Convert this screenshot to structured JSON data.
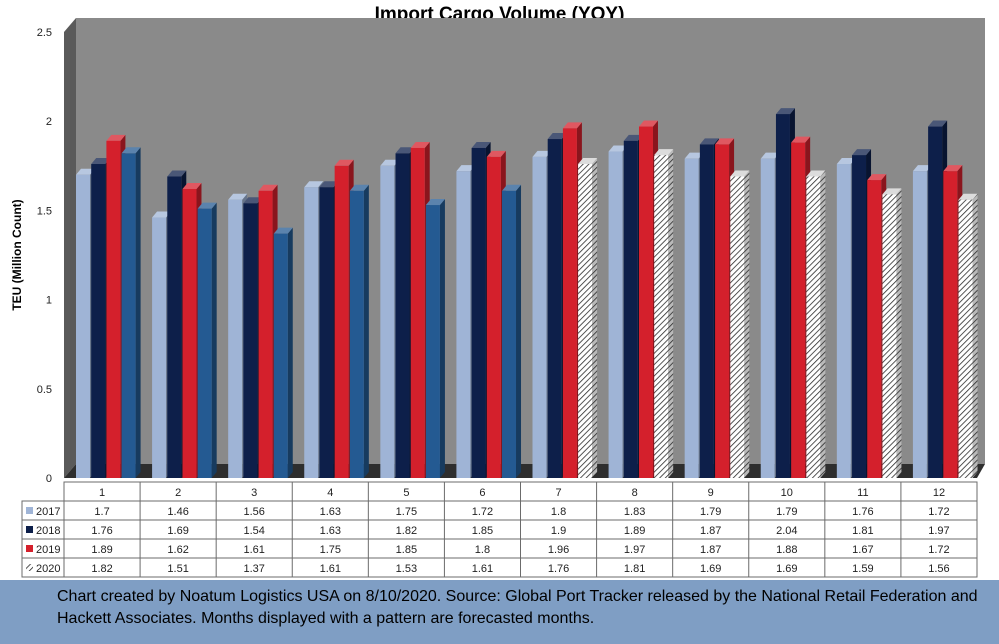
{
  "chart_data": {
    "type": "bar",
    "title": "Import Cargo Volume (YOY)",
    "xlabel": "",
    "ylabel": "TEU (Million Count)",
    "ylim": [
      0,
      2.5
    ],
    "yticks": [
      "0",
      "0.5",
      "1",
      "1.5",
      "2",
      "2.5"
    ],
    "categories": [
      "1",
      "2",
      "3",
      "4",
      "5",
      "6",
      "7",
      "8",
      "9",
      "10",
      "11",
      "12"
    ],
    "series": [
      {
        "name": "2017",
        "values": [
          "1.7",
          "1.46",
          "1.56",
          "1.63",
          "1.75",
          "1.72",
          "1.8",
          "1.83",
          "1.79",
          "1.79",
          "1.76",
          "1.72"
        ],
        "color": "#9fb4d6"
      },
      {
        "name": "2018",
        "values": [
          "1.76",
          "1.69",
          "1.54",
          "1.63",
          "1.82",
          "1.85",
          "1.9",
          "1.89",
          "1.87",
          "2.04",
          "1.81",
          "1.97"
        ],
        "color": "#0d1f4a"
      },
      {
        "name": "2019",
        "values": [
          "1.89",
          "1.62",
          "1.61",
          "1.75",
          "1.85",
          "1.8",
          "1.96",
          "1.97",
          "1.87",
          "1.88",
          "1.67",
          "1.72"
        ],
        "color": "#d4202c"
      },
      {
        "name": "2020",
        "values": [
          "1.82",
          "1.51",
          "1.37",
          "1.61",
          "1.53",
          "1.61",
          "1.76",
          "1.81",
          "1.69",
          "1.69",
          "1.59",
          "1.56"
        ],
        "color": "#245a92",
        "forecast_from_category": "7"
      }
    ],
    "grid": false,
    "legend": "data-table",
    "data_table": true,
    "background": "#8a8a8a"
  },
  "footer": {
    "text": "Chart created by Noatum Logistics USA on 8/10/2020. Source: Global Port Tracker released by the National Retail Federation and Hackett Associates. Months displayed with a pattern are forecasted months."
  }
}
